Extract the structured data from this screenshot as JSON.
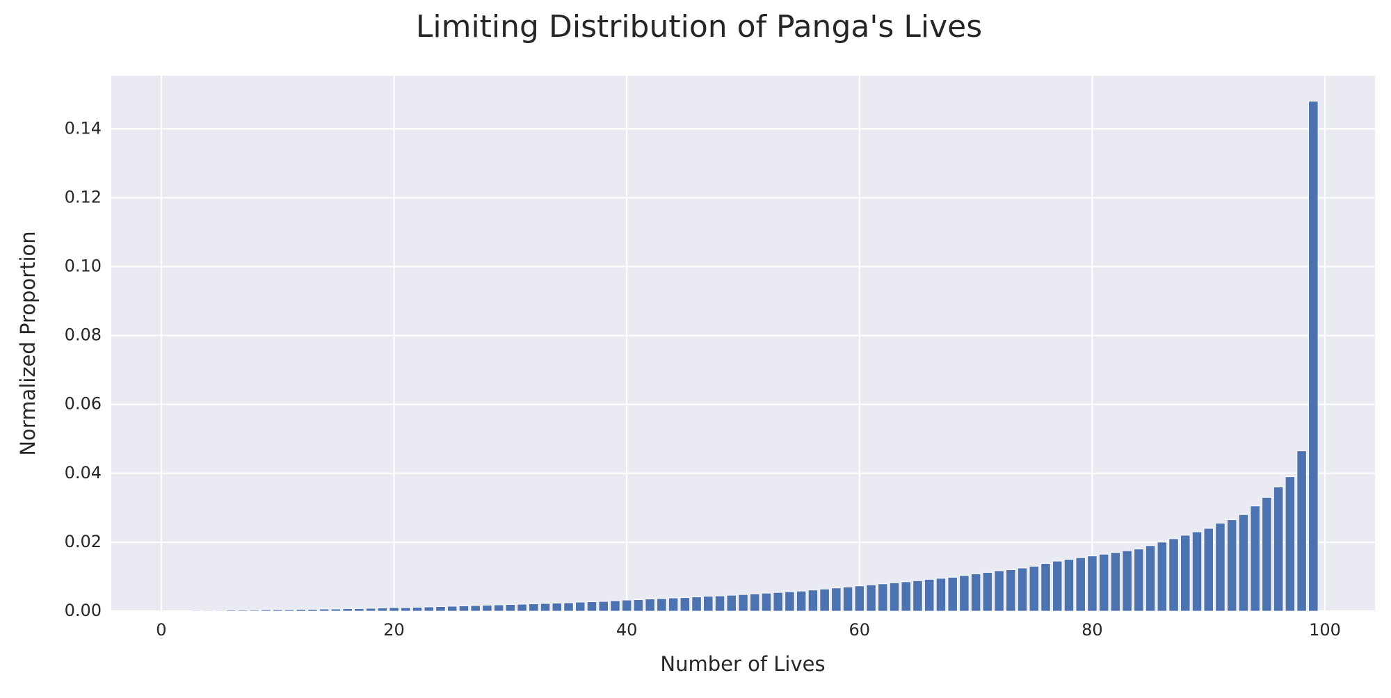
{
  "chart_data": {
    "type": "bar",
    "title": "Limiting Distribution of Panga's Lives",
    "xlabel": "Number of Lives",
    "ylabel": "Normalized Proportion",
    "x": [
      1,
      2,
      3,
      4,
      5,
      6,
      7,
      8,
      9,
      10,
      11,
      12,
      13,
      14,
      15,
      16,
      17,
      18,
      19,
      20,
      21,
      22,
      23,
      24,
      25,
      26,
      27,
      28,
      29,
      30,
      31,
      32,
      33,
      34,
      35,
      36,
      37,
      38,
      39,
      40,
      41,
      42,
      43,
      44,
      45,
      46,
      47,
      48,
      49,
      50,
      51,
      52,
      53,
      54,
      55,
      56,
      57,
      58,
      59,
      60,
      61,
      62,
      63,
      64,
      65,
      66,
      67,
      68,
      69,
      70,
      71,
      72,
      73,
      74,
      75,
      76,
      77,
      78,
      79,
      80,
      81,
      82,
      83,
      84,
      85,
      86,
      87,
      88,
      89,
      90,
      91,
      92,
      93,
      94,
      95,
      96,
      97,
      98,
      99
    ],
    "values": [
      0.0001,
      0.0001,
      0.0002,
      0.0002,
      0.0002,
      0.0003,
      0.0003,
      0.0003,
      0.0004,
      0.0004,
      0.0004,
      0.0005,
      0.0005,
      0.0006,
      0.0006,
      0.0007,
      0.0007,
      0.0008,
      0.0009,
      0.001,
      0.001,
      0.0011,
      0.0012,
      0.0013,
      0.0014,
      0.0015,
      0.0016,
      0.0017,
      0.0018,
      0.0019,
      0.002,
      0.0021,
      0.0022,
      0.0023,
      0.0024,
      0.0026,
      0.0027,
      0.0028,
      0.003,
      0.0032,
      0.0033,
      0.0035,
      0.0036,
      0.0038,
      0.0039,
      0.0041,
      0.0043,
      0.0044,
      0.0046,
      0.0048,
      0.005,
      0.0052,
      0.0054,
      0.0056,
      0.0058,
      0.0061,
      0.0064,
      0.0067,
      0.007,
      0.0073,
      0.0076,
      0.0079,
      0.0082,
      0.0085,
      0.0088,
      0.0092,
      0.0095,
      0.0098,
      0.0103,
      0.0108,
      0.0112,
      0.0117,
      0.012,
      0.0125,
      0.013,
      0.0138,
      0.0145,
      0.015,
      0.0155,
      0.016,
      0.0165,
      0.017,
      0.0175,
      0.018,
      0.019,
      0.02,
      0.021,
      0.022,
      0.023,
      0.024,
      0.0255,
      0.0265,
      0.028,
      0.0305,
      0.033,
      0.036,
      0.039,
      0.0465,
      0.148
    ],
    "bar_width": 0.8,
    "color": "#4c72b0",
    "xlim": [
      -4.3,
      104.3
    ],
    "xticks": [
      0,
      20,
      40,
      60,
      80,
      100
    ],
    "ylim": [
      0,
      0.1554
    ],
    "yticks": [
      {
        "value": 0,
        "label": "0.00"
      },
      {
        "value": 0.02,
        "label": "0.02"
      },
      {
        "value": 0.04,
        "label": "0.04"
      },
      {
        "value": 0.06,
        "label": "0.06"
      },
      {
        "value": 0.08,
        "label": "0.08"
      },
      {
        "value": 0.1,
        "label": "0.10"
      },
      {
        "value": 0.12,
        "label": "0.12"
      },
      {
        "value": 0.14,
        "label": "0.14"
      }
    ],
    "grid": true
  }
}
